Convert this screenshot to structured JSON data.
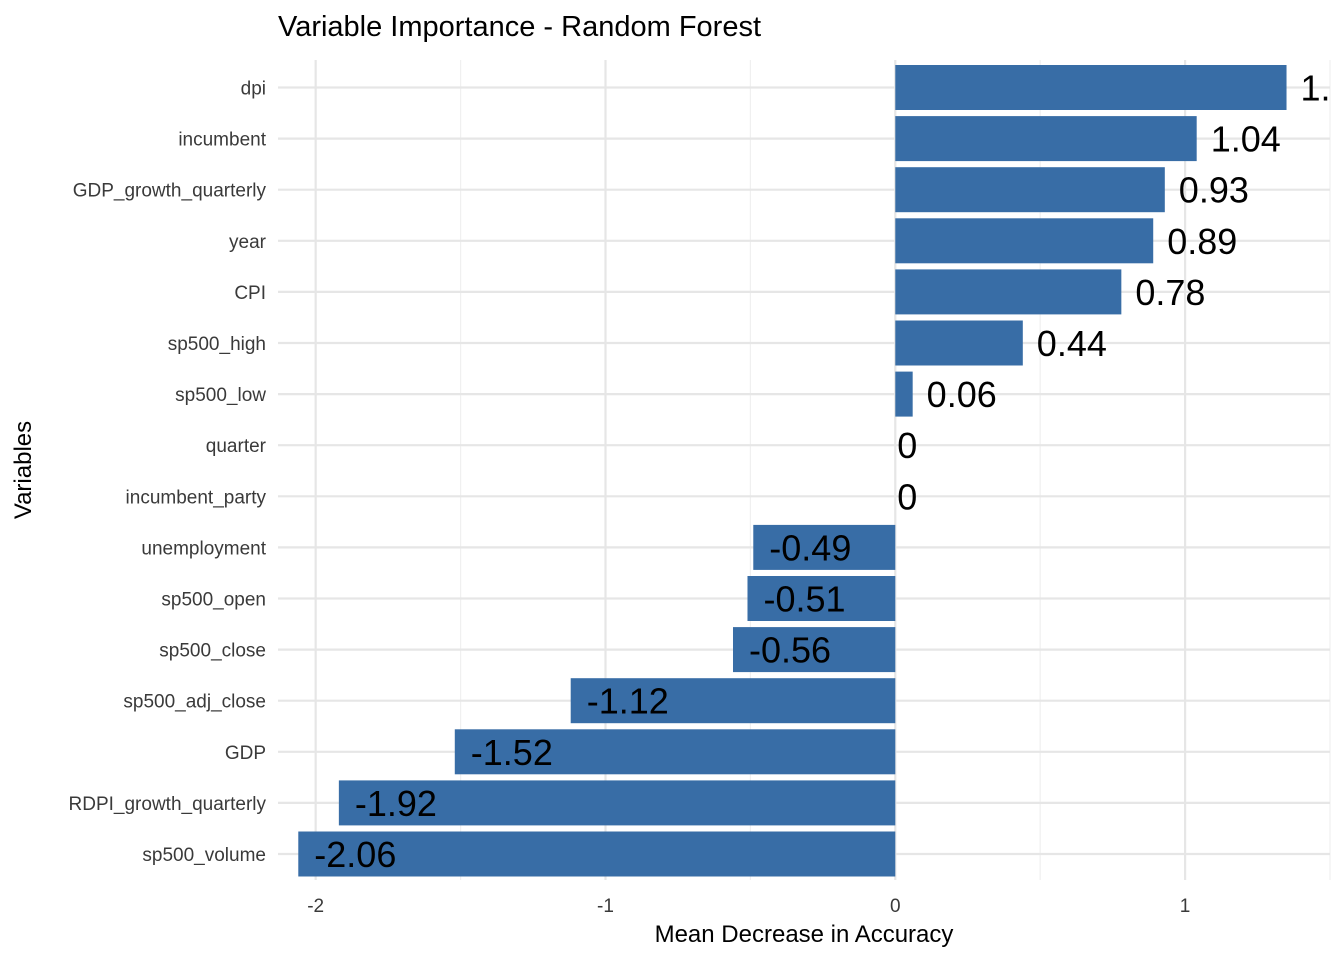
{
  "chart_data": {
    "type": "bar",
    "orientation": "horizontal",
    "title": "Variable Importance - Random Forest",
    "xlabel": "Mean Decrease in Accuracy",
    "ylabel": "Variables",
    "xlim": [
      -2.13,
      1.5
    ],
    "x_ticks": [
      -2,
      -1,
      0,
      1
    ],
    "x_tick_labels": [
      "-2",
      "-1",
      "0",
      "1"
    ],
    "grid": true,
    "legend": "none",
    "bar_color": "#386DA6",
    "categories": [
      "dpi",
      "incumbent",
      "GDP_growth_quarterly",
      "year",
      "CPI",
      "sp500_high",
      "sp500_low",
      "quarter",
      "incumbent_party",
      "unemployment",
      "sp500_open",
      "sp500_close",
      "sp500_adj_close",
      "GDP",
      "RDPI_growth_quarterly",
      "sp500_volume"
    ],
    "values": [
      1.35,
      1.04,
      0.93,
      0.89,
      0.78,
      0.44,
      0.06,
      0,
      0,
      -0.49,
      -0.51,
      -0.56,
      -1.12,
      -1.52,
      -1.92,
      -2.06
    ],
    "data_labels": [
      "1.",
      "1.04",
      "0.93",
      "0.89",
      "0.78",
      "0.44",
      "0.06",
      "0",
      "0",
      "-0.49",
      "-0.51",
      "-0.56",
      "-1.12",
      "-1.52",
      "-1.92",
      "-2.06"
    ]
  }
}
